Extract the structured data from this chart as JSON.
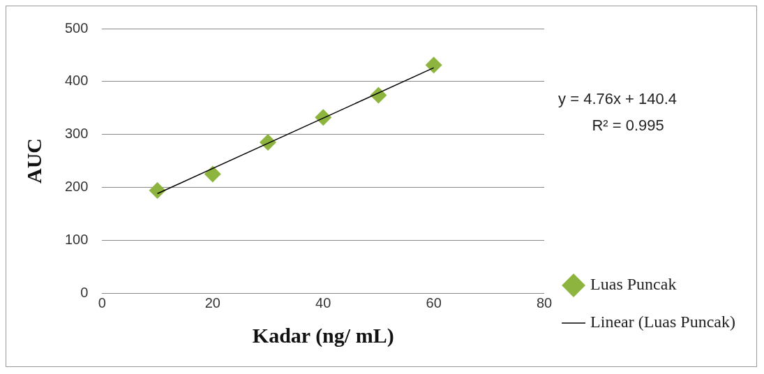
{
  "chart_data": {
    "type": "scatter",
    "xlabel": "Kadar (ng/ mL)",
    "ylabel": "AUC",
    "xlim": [
      0,
      80
    ],
    "xticks": [
      0,
      20,
      40,
      60,
      80
    ],
    "ylim": [
      0,
      500
    ],
    "yticks": [
      0,
      100,
      200,
      300,
      400,
      500
    ],
    "grid": "y",
    "legend": "right",
    "marker": "diamond",
    "annotations": [
      "y = 4.76x + 140.4",
      "R² = 0.995"
    ],
    "series": [
      {
        "name": "Luas Puncak",
        "type": "scatter",
        "color": "#8db43e",
        "x": [
          10,
          20,
          30,
          40,
          50,
          60
        ],
        "values": [
          194,
          225,
          285,
          332,
          374,
          431
        ]
      },
      {
        "name": "Linear (Luas Puncak)",
        "type": "line",
        "color": "#000000",
        "x": [
          10,
          60
        ],
        "values": [
          188,
          426
        ],
        "marker": "none"
      }
    ]
  }
}
